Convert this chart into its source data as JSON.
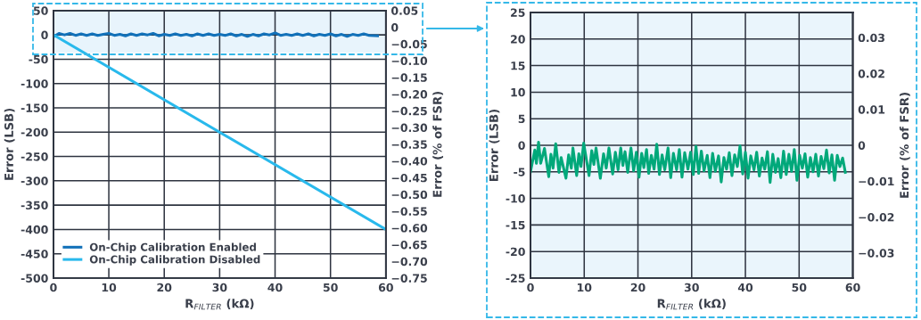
{
  "chart_data": [
    {
      "type": "line",
      "xlabel": "R$_{FILTER}$ (kΩ)",
      "ylabel": "Error (LSB)",
      "y2label": "Error (% of FSR)",
      "xlim": [
        0,
        60
      ],
      "xticks": [
        0,
        10,
        20,
        30,
        40,
        50,
        60
      ],
      "ylim": [
        -500,
        50
      ],
      "yticks": [
        -500,
        -450,
        -400,
        -350,
        -300,
        -250,
        -200,
        -150,
        -100,
        -50,
        0,
        50
      ],
      "y2lim": [
        -0.75,
        0.05
      ],
      "y2ticks": [
        {
          "value": -0.75,
          "label": "−0.75"
        },
        {
          "value": -0.7,
          "label": "−0.70"
        },
        {
          "value": -0.65,
          "label": "−0.65"
        },
        {
          "value": -0.6,
          "label": "−0.60"
        },
        {
          "value": -0.55,
          "label": "−0.55"
        },
        {
          "value": -0.5,
          "label": "−0.50"
        },
        {
          "value": -0.45,
          "label": "−0.45"
        },
        {
          "value": -0.4,
          "label": "−0.40"
        },
        {
          "value": -0.35,
          "label": "−0.35"
        },
        {
          "value": -0.3,
          "label": "−0.30"
        },
        {
          "value": -0.25,
          "label": "−0.25"
        },
        {
          "value": -0.2,
          "label": "−0.20"
        },
        {
          "value": -0.15,
          "label": "−0.15"
        },
        {
          "value": -0.1,
          "label": "−0.10"
        },
        {
          "value": -0.05,
          "label": "−0.05"
        },
        {
          "value": 0,
          "label": "0"
        },
        {
          "value": 0.05,
          "label": "0.05"
        }
      ],
      "grid": true,
      "legend": "bottom left",
      "bands": [
        {
          "axis": "y",
          "from": -37,
          "to": 50,
          "color": "#e8f4fc"
        }
      ],
      "series": [
        {
          "name": "On-Chip Calibration Enabled",
          "color": "#1271b9",
          "x": [
            0,
            1,
            2,
            3,
            4,
            5,
            6,
            7,
            8,
            9,
            10,
            11,
            12,
            13,
            14,
            15,
            16,
            17,
            18,
            19,
            20,
            21,
            22,
            23,
            24,
            25,
            26,
            27,
            28,
            29,
            30,
            31,
            32,
            33,
            34,
            35,
            36,
            37,
            38,
            39,
            40,
            41,
            42,
            43,
            44,
            45,
            46,
            47,
            48,
            49,
            50,
            51,
            52,
            53,
            54,
            55,
            56,
            57,
            58.5
          ],
          "values": [
            -4,
            3,
            0,
            3,
            -1,
            2,
            -1,
            2,
            -1,
            1,
            3,
            -1,
            1,
            -2,
            2,
            -1,
            2,
            0,
            3,
            -2,
            1,
            -1,
            2,
            -1,
            1,
            -2,
            2,
            -1,
            2,
            -1,
            1,
            -1,
            2,
            -2,
            1,
            -3,
            1,
            -2,
            2,
            0,
            4,
            -1,
            1,
            -1,
            2,
            -1,
            2,
            -2,
            1,
            -1,
            2,
            -2,
            1,
            -3,
            1,
            -1,
            2,
            -1,
            -2
          ]
        },
        {
          "name": "On-Chip Calibration Disabled",
          "color": "#29b9ec",
          "x": [
            0,
            60
          ],
          "values": [
            0,
            -400
          ]
        }
      ]
    },
    {
      "type": "line",
      "xlabel": "R$_{FILTER}$ (kΩ)",
      "ylabel": "Error (LSB)",
      "y2label": "Error (% of FSR)",
      "xlim": [
        0,
        60
      ],
      "xticks": [
        0,
        10,
        20,
        30,
        40,
        50,
        60
      ],
      "ylim": [
        -25,
        25
      ],
      "yticks": [
        -25,
        -20,
        -15,
        -10,
        -5,
        0,
        5,
        10,
        15,
        20,
        25
      ],
      "y2lim": [
        -0.037,
        0.037
      ],
      "y2ticks": [
        {
          "value": -0.03,
          "label": "−0.03"
        },
        {
          "value": -0.02,
          "label": "−0.02"
        },
        {
          "value": -0.01,
          "label": "−0.01"
        },
        0,
        0.01,
        0.02,
        0.03
      ],
      "grid": true,
      "series": [
        {
          "color": "#00a87a",
          "x": [
            0,
            0.8,
            1.1,
            1.5,
            1.9,
            2.6,
            3.4,
            3.8,
            4.2,
            4.7,
            5.3,
            5.7,
            6.6,
            7.1,
            7.6,
            7.9,
            8.6,
            9.0,
            9.4,
            9.9,
            10.9,
            11.4,
            11.8,
            12.2,
            13.0,
            13.6,
            14.1,
            14.6,
            15.3,
            15.8,
            16.3,
            16.8,
            17.2,
            17.6,
            18.1,
            18.7,
            19.2,
            19.7,
            20.2,
            20.7,
            21.1,
            21.6,
            22.0,
            22.5,
            23.0,
            23.5,
            24.0,
            24.5,
            25.0,
            25.6,
            26.1,
            26.6,
            27.2,
            27.7,
            28.2,
            28.7,
            29.3,
            29.8,
            30.3,
            30.8,
            31.3,
            31.8,
            32.3,
            32.9,
            33.4,
            33.9,
            34.4,
            35.0,
            35.5,
            36.0,
            36.5,
            37.0,
            37.5,
            38.0,
            38.5,
            39.0,
            39.5,
            40.0,
            40.5,
            41.0,
            41.6,
            42.1,
            42.6,
            43.1,
            43.6,
            44.1,
            44.6,
            45.1,
            45.6,
            46.1,
            46.6,
            47.1,
            47.6,
            48.1,
            48.6,
            49.1,
            49.6,
            50.1,
            50.6,
            51.1,
            51.6,
            52.1,
            52.6,
            53.1,
            53.6,
            54.1,
            54.6,
            55.1,
            55.6,
            56.1,
            56.6,
            57.1,
            57.6,
            58.1,
            58.6
          ],
          "values": [
            -5,
            -0.9,
            -3.4,
            0.6,
            -3.4,
            -0.6,
            -5.9,
            -1.7,
            -4.3,
            0.3,
            -5.1,
            -2.3,
            -6.2,
            -1.8,
            -4.3,
            -0.5,
            -5.7,
            -1.6,
            -4.0,
            0.4,
            -5.7,
            -1.0,
            -3.6,
            -0.5,
            -6.2,
            -1.6,
            -4.3,
            -0.5,
            -5.4,
            -1.3,
            -4.6,
            -0.5,
            -3.8,
            -1.2,
            -5.1,
            -0.5,
            -4.8,
            -1.3,
            -6.0,
            -1.5,
            -4.2,
            -0.8,
            -5.3,
            -1.9,
            -4.5,
            0.2,
            -5.5,
            -1.8,
            -4.6,
            -0.5,
            -6.1,
            -1.5,
            -4.6,
            -0.8,
            -6.0,
            -1.4,
            -4.5,
            -1.3,
            -5.5,
            -0.2,
            -5.3,
            -1.1,
            -4.8,
            -1.9,
            -6.1,
            -1.5,
            -4.9,
            -2.0,
            -6.9,
            -2.3,
            -4.5,
            -1.4,
            -5.7,
            -1.8,
            -4.0,
            -0.1,
            -5.4,
            -1.3,
            -6.2,
            -2.0,
            -4.6,
            -1.3,
            -5.8,
            -2.4,
            -4.5,
            -1.2,
            -7.0,
            -1.7,
            -5.1,
            -2.5,
            -6.1,
            -1.1,
            -5.5,
            -1.7,
            -4.9,
            -0.8,
            -6.6,
            -1.9,
            -4.3,
            -1.6,
            -6.0,
            -2.3,
            -5.0,
            -1.7,
            -5.8,
            -2.1,
            -4.4,
            -0.9,
            -5.2,
            -1.8,
            -6.6,
            -1.9,
            -4.0,
            -2.4,
            -5.1
          ]
        }
      ]
    }
  ]
}
